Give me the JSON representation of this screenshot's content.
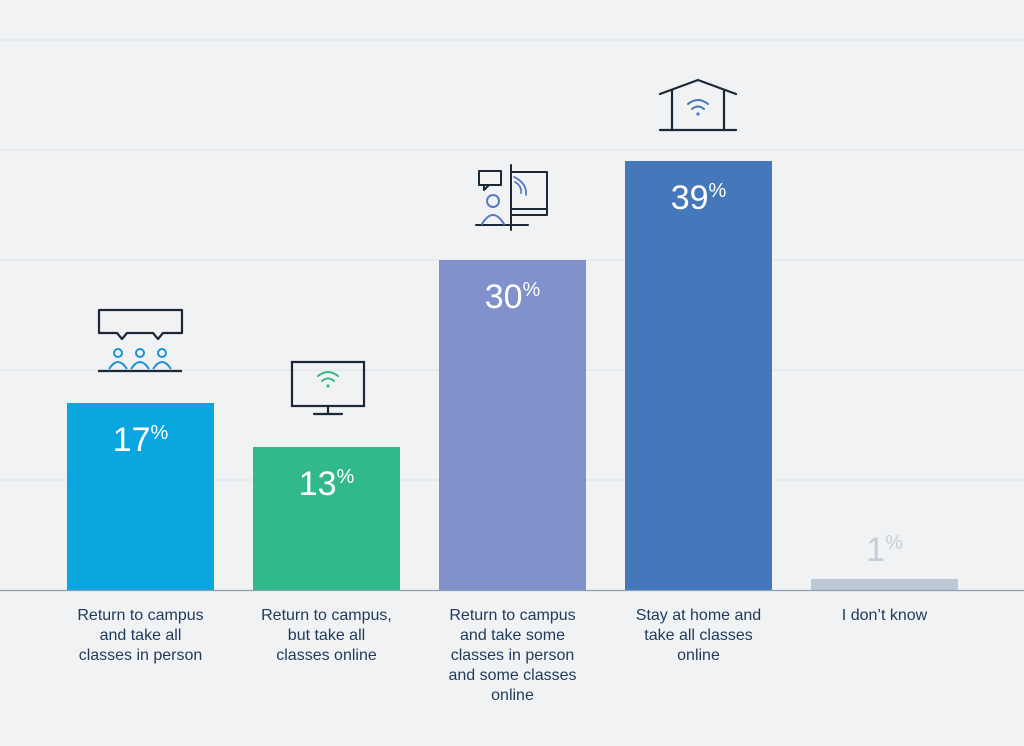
{
  "chart_data": {
    "type": "bar",
    "title": "",
    "xlabel": "",
    "ylabel": "",
    "ylim": [
      0,
      50
    ],
    "grid": true,
    "categories": [
      "Return to campus and take all classes in person",
      "Return to campus, but take all classes online",
      "Return to campus and take some classes in person and some classes online",
      "Stay at home and take all classes online",
      "I don't know"
    ],
    "label_lines": [
      [
        "Return to campus",
        "and take all",
        "classes in person"
      ],
      [
        "Return to campus,",
        "but take all",
        "classes online"
      ],
      [
        "Return to campus",
        "and take some",
        "classes in person",
        "and some classes",
        "online"
      ],
      [
        "Stay at home and",
        "take all classes",
        "online"
      ],
      [
        "I don’t know"
      ]
    ],
    "values": [
      17,
      13,
      30,
      39,
      1
    ],
    "value_labels": [
      "17",
      "13",
      "30",
      "39",
      "1"
    ],
    "percent_sign": "%",
    "colors": [
      "#0aa6df",
      "#31b98a",
      "#8091cb",
      "#4577bb",
      "#bcc9d6"
    ],
    "icons": [
      "classroom-people-icon",
      "monitor-wifi-icon",
      "hybrid-learning-icon",
      "home-wifi-icon",
      ""
    ]
  }
}
